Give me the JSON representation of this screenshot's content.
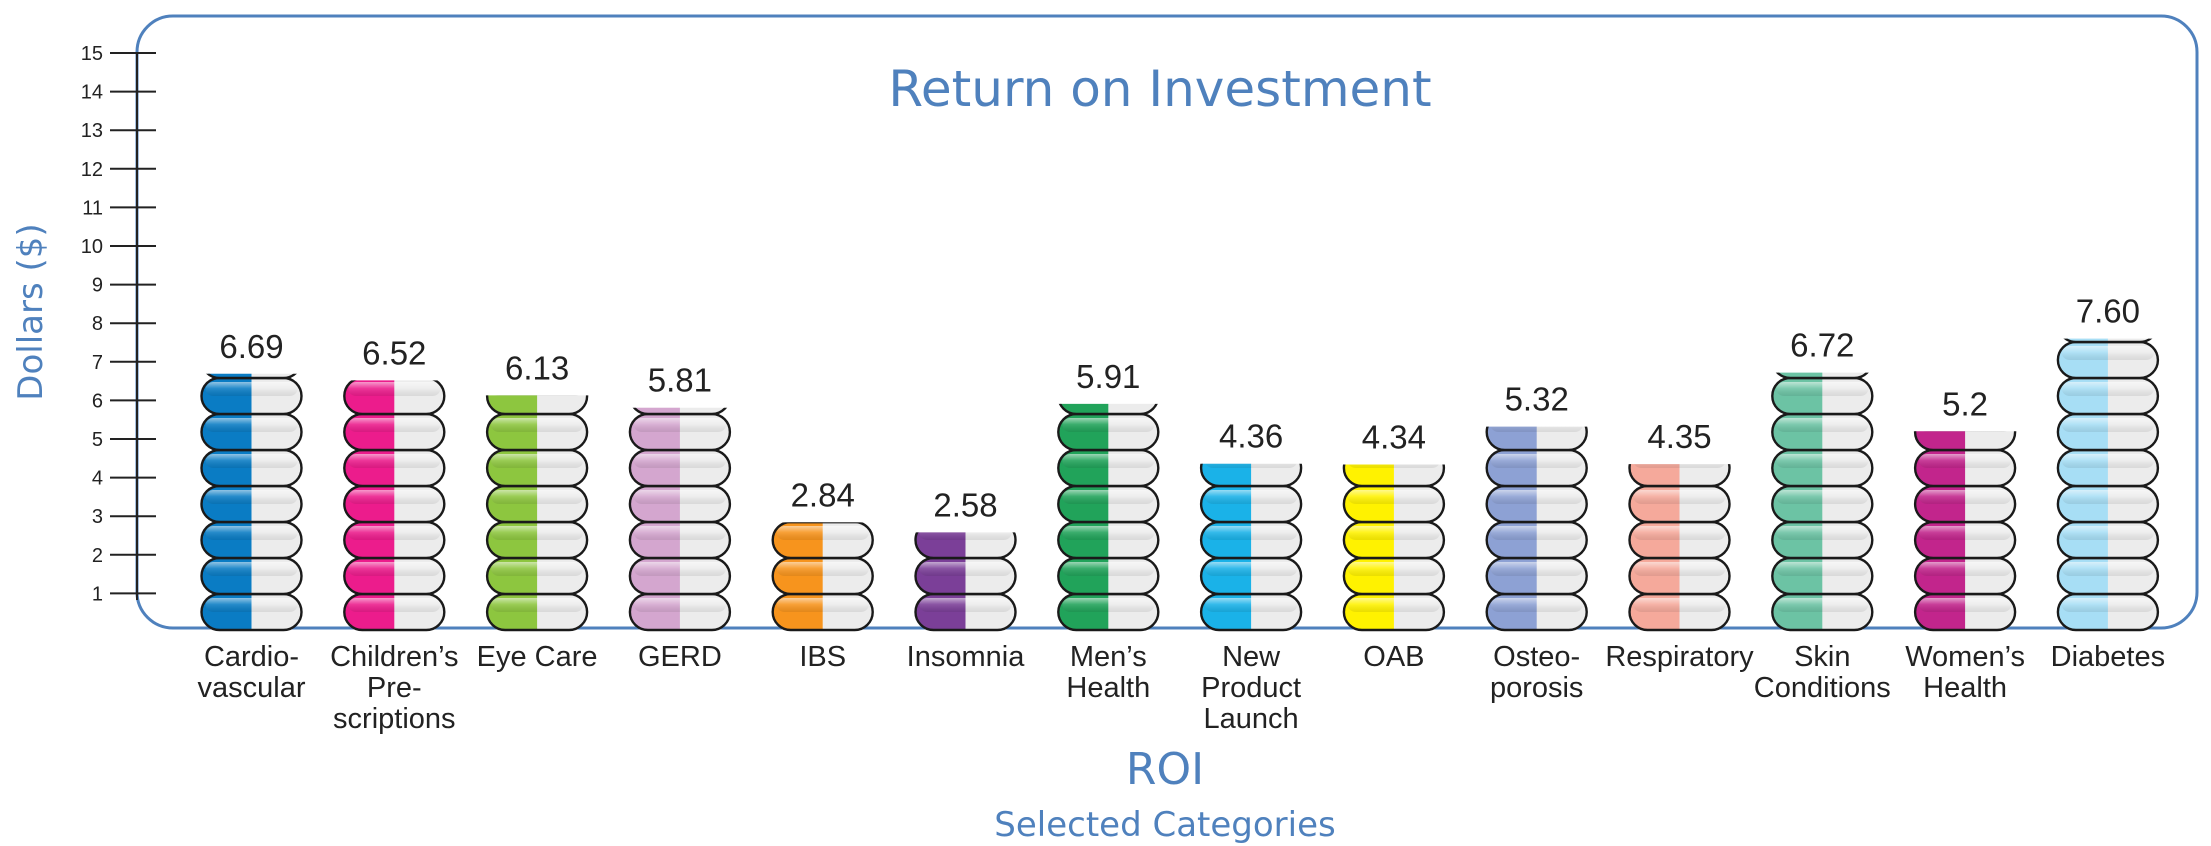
{
  "chart_data": {
    "type": "bar",
    "title": "Return on Investment",
    "xlabel": "ROI",
    "xsublabel": "Selected Categories",
    "ylabel": "Dollars ($)",
    "ylim": [
      0,
      15
    ],
    "yticks": [
      1,
      2,
      3,
      4,
      5,
      6,
      7,
      8,
      9,
      10,
      11,
      12,
      13,
      14,
      15
    ],
    "grid": false,
    "categories": [
      "Cardio-\nvascular",
      "Children’s\nPre-\nscriptions",
      "Eye Care",
      "GERD",
      "IBS",
      "Insomnia",
      "Men’s\nHealth",
      "New\nProduct\nLaunch",
      "OAB",
      "Osteo-\nporosis",
      "Respiratory",
      "Skin\nConditions",
      "Women’s\nHealth",
      "Diabetes"
    ],
    "values": [
      6.69,
      6.52,
      6.13,
      5.81,
      2.84,
      2.58,
      5.91,
      4.36,
      4.34,
      5.32,
      4.35,
      6.72,
      5.2,
      7.6
    ],
    "value_labels": [
      "6.69",
      "6.52",
      "6.13",
      "5.81",
      "2.84",
      "2.58",
      "5.91",
      "4.36",
      "4.34",
      "5.32",
      "4.35",
      "6.72",
      "5.2",
      "7.60"
    ],
    "colors": [
      "#0a7cc4",
      "#ec1c8c",
      "#8dc63f",
      "#d4a6cf",
      "#f7941d",
      "#7b3f98",
      "#21a35a",
      "#1ab2e8",
      "#fff200",
      "#8da1d4",
      "#f5a99b",
      "#6cc3a4",
      "#c2258c",
      "#a7def5"
    ]
  }
}
